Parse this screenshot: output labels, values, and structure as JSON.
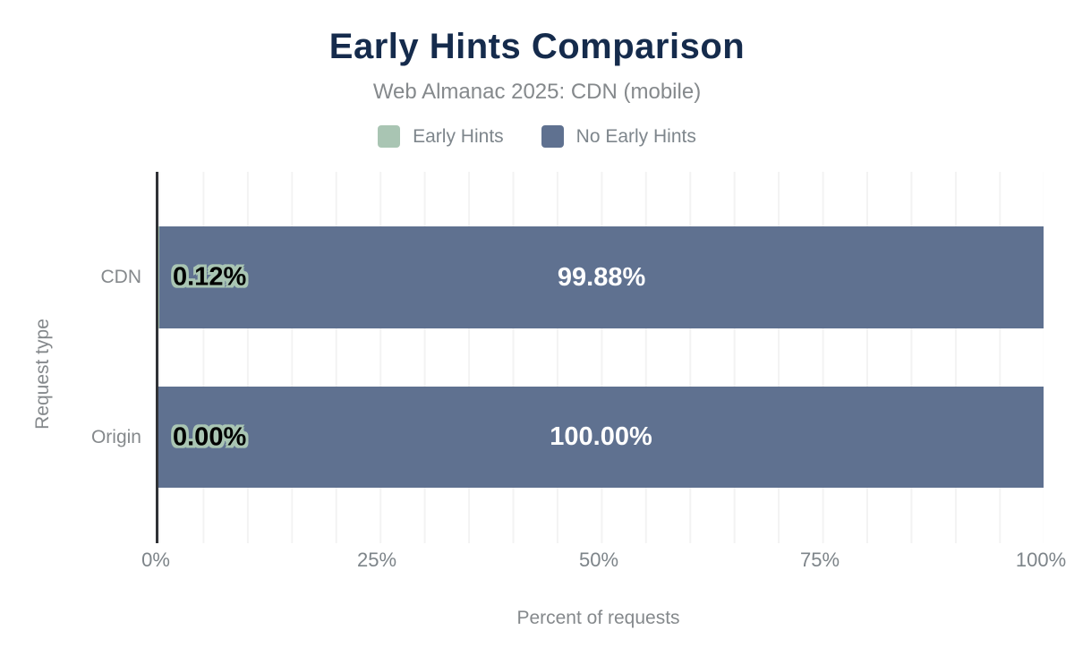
{
  "chart_data": {
    "type": "bar",
    "orientation": "horizontal",
    "stacked": true,
    "title": "Early Hints Comparison",
    "subtitle": "Web Almanac 2025: CDN (mobile)",
    "xlabel": "Percent of requests",
    "ylabel": "Request type",
    "xlim": [
      0,
      100
    ],
    "xticks": [
      "0%",
      "25%",
      "50%",
      "75%",
      "100%"
    ],
    "grid": "vertical gridlines every 5%",
    "legend_position": "top",
    "categories": [
      "CDN",
      "Origin"
    ],
    "series": [
      {
        "name": "Early Hints",
        "color": "#a9c5b3",
        "values": [
          0.12,
          0.0
        ],
        "data_labels": [
          "0.12%",
          "0.00%"
        ]
      },
      {
        "name": "No Early Hints",
        "color": "#5f7190",
        "values": [
          99.88,
          100.0
        ],
        "data_labels": [
          "99.88%",
          "100.00%"
        ]
      }
    ],
    "colors": {
      "title_text": "#152b4c",
      "axis_text": "#85898c",
      "axis_line": "#303236",
      "gridline": "#f3f3f3",
      "bar_label_light": "#ffffff",
      "bar_label_dark": "#000000"
    }
  }
}
